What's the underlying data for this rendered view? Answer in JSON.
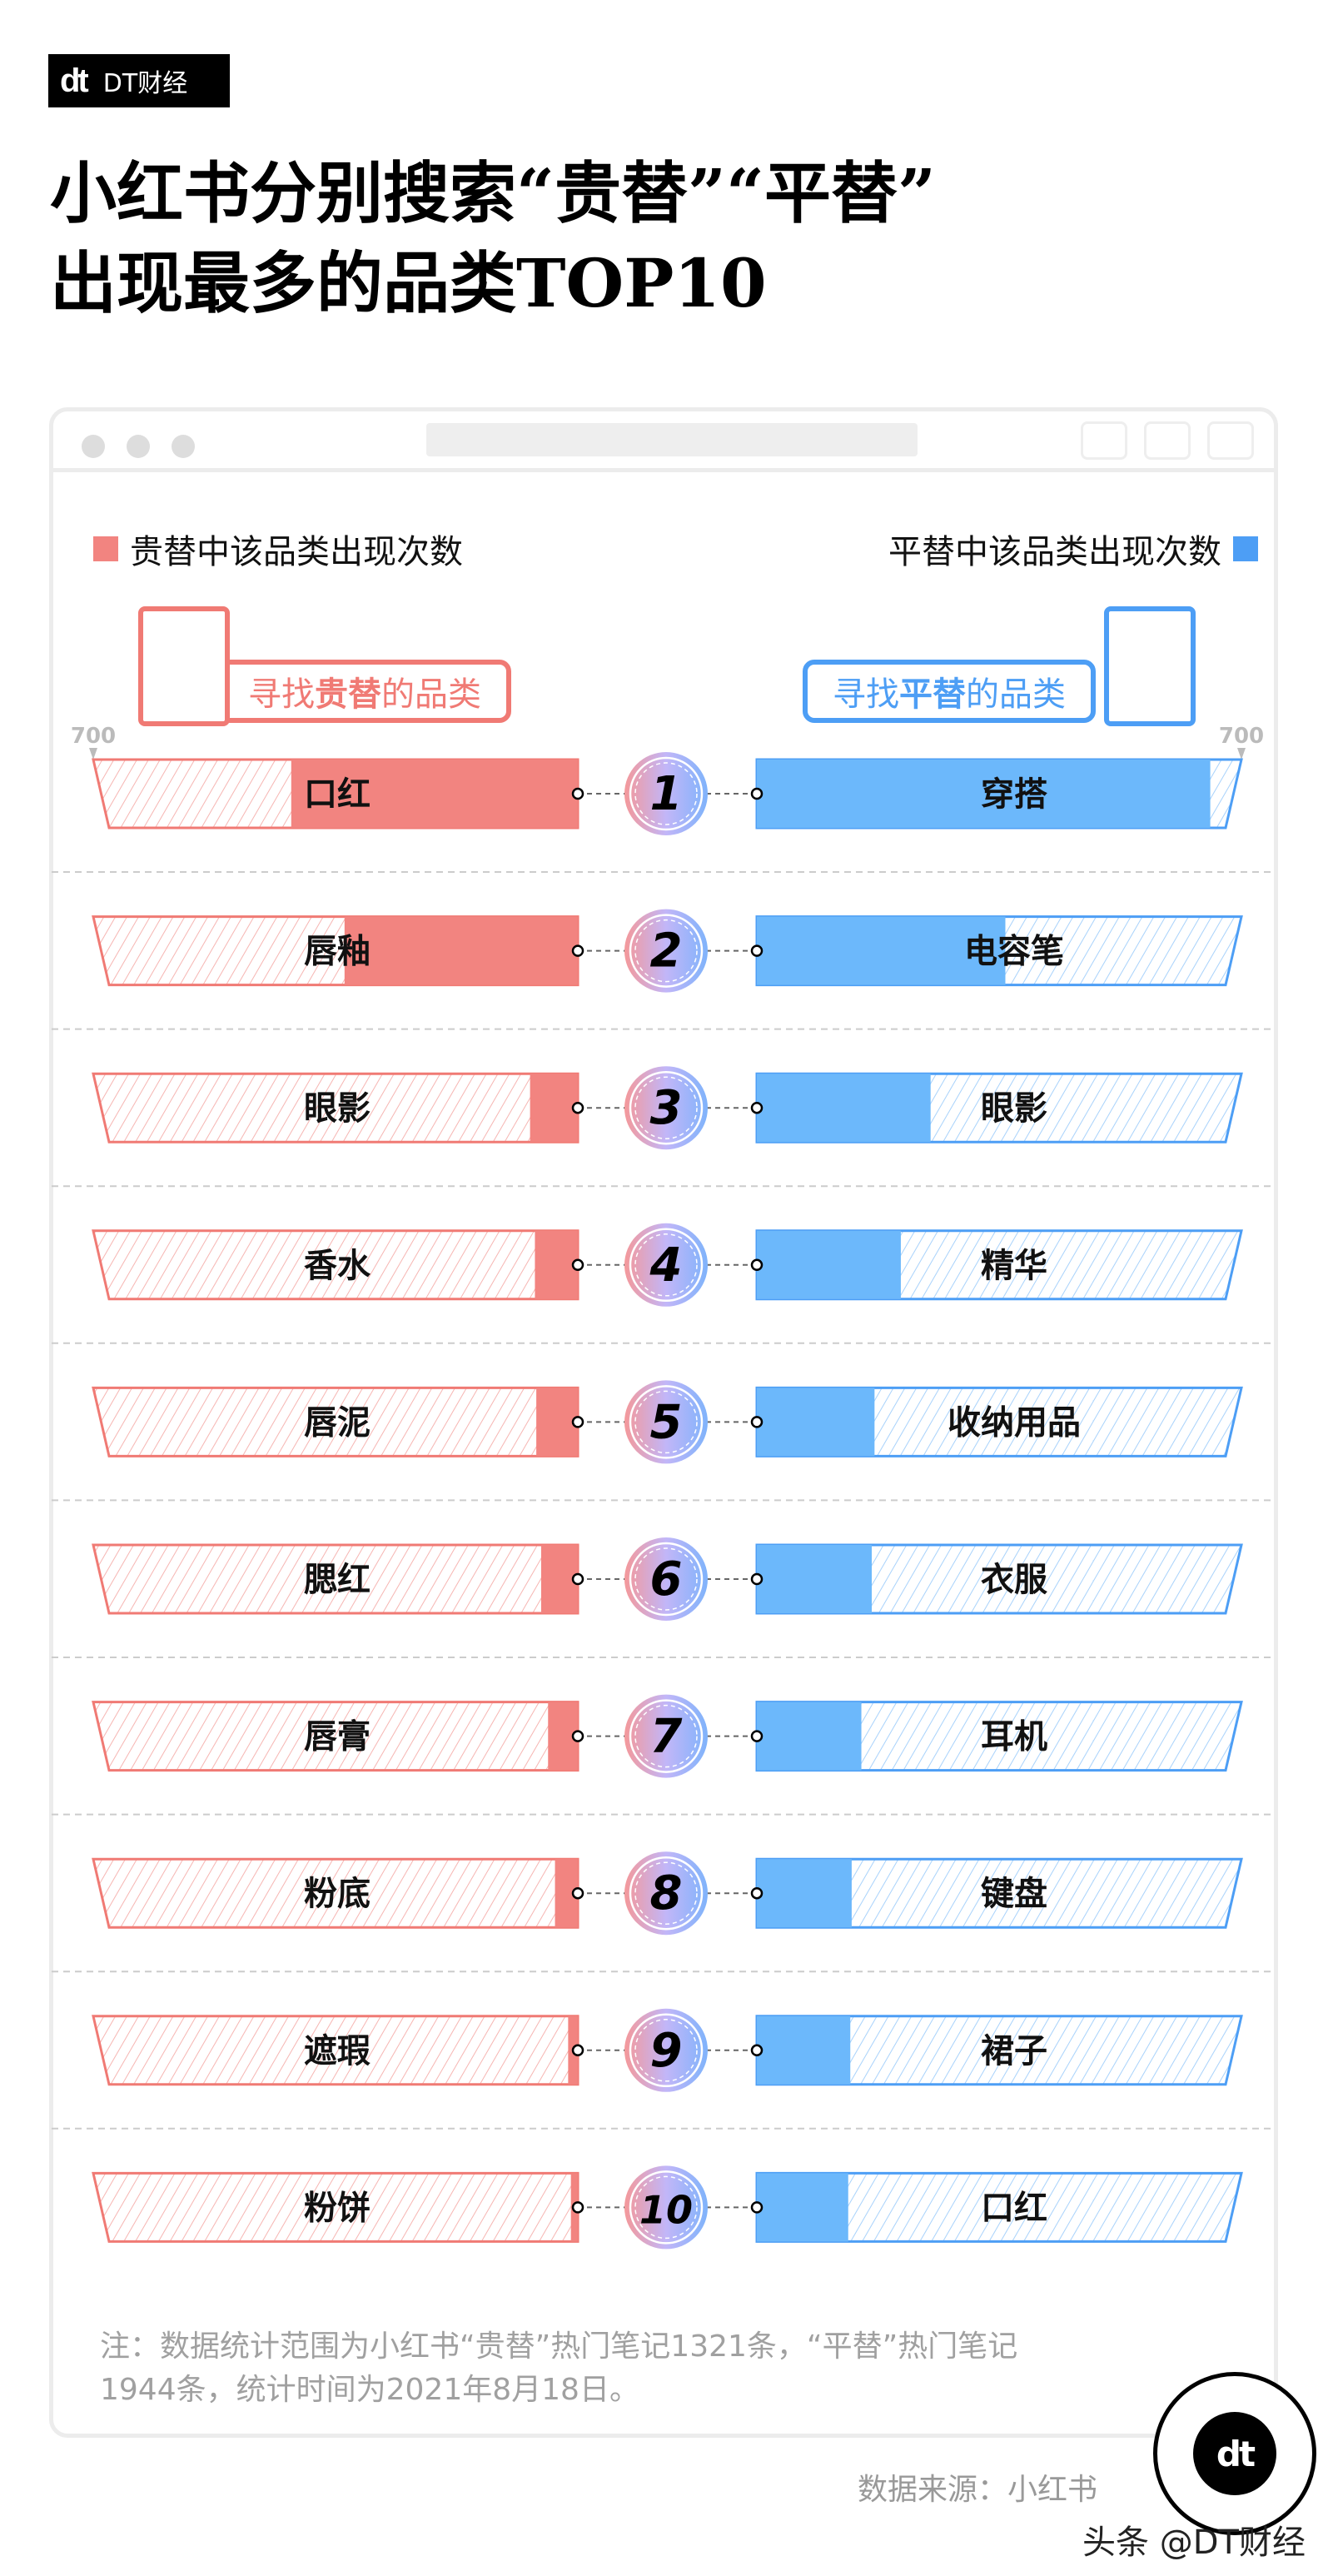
{
  "brand": {
    "name": "DT财经",
    "mark": "dt"
  },
  "title_lines": [
    "小红书分别搜索“贵替”“平替”",
    "出现最多的品类TOP10"
  ],
  "legend": {
    "left": "贵替中该品类出现次数",
    "right": "平替中该品类出现次数"
  },
  "tags": {
    "left": {
      "pre": "寻找",
      "bold": "贵替",
      "post": "的品类"
    },
    "right": {
      "pre": "寻找",
      "bold": "平替",
      "post": "的品类"
    }
  },
  "colors": {
    "left": "#f28480",
    "right": "#6cb8fb",
    "left_line": "#f07a74",
    "right_line": "#4d9ef5"
  },
  "chart_data": {
    "type": "bar",
    "layout": "back-to-back horizontal bars",
    "axis_max_label": "700",
    "xlim": [
      0,
      700
    ],
    "ranks": [
      "1",
      "2",
      "3",
      "4",
      "5",
      "6",
      "7",
      "8",
      "9",
      "10"
    ],
    "series": [
      {
        "name": "贵替中该品类出现次数",
        "categories": [
          "口红",
          "唇釉",
          "眼影",
          "香水",
          "唇泥",
          "腮红",
          "唇膏",
          "粉底",
          "遮瑕",
          "粉饼"
        ],
        "values": [
          414,
          337,
          69,
          62,
          60,
          53,
          43,
          33,
          14,
          10
        ]
      },
      {
        "name": "平替中该品类出现次数",
        "categories": [
          "穿搭",
          "电容笔",
          "眼影",
          "精华",
          "收纳用品",
          "衣服",
          "耳机",
          "键盘",
          "裙子",
          "口红"
        ],
        "values": [
          655,
          359,
          251,
          208,
          170,
          166,
          151,
          137,
          135,
          132
        ]
      }
    ]
  },
  "notes": [
    "注：数据统计范围为小红书“贵替”热门笔记1321条，“平替”热门笔记",
    "1944条，统计时间为2021年8月18日。"
  ],
  "source": "数据来源：小红书",
  "footer": "头条 @DT财经"
}
